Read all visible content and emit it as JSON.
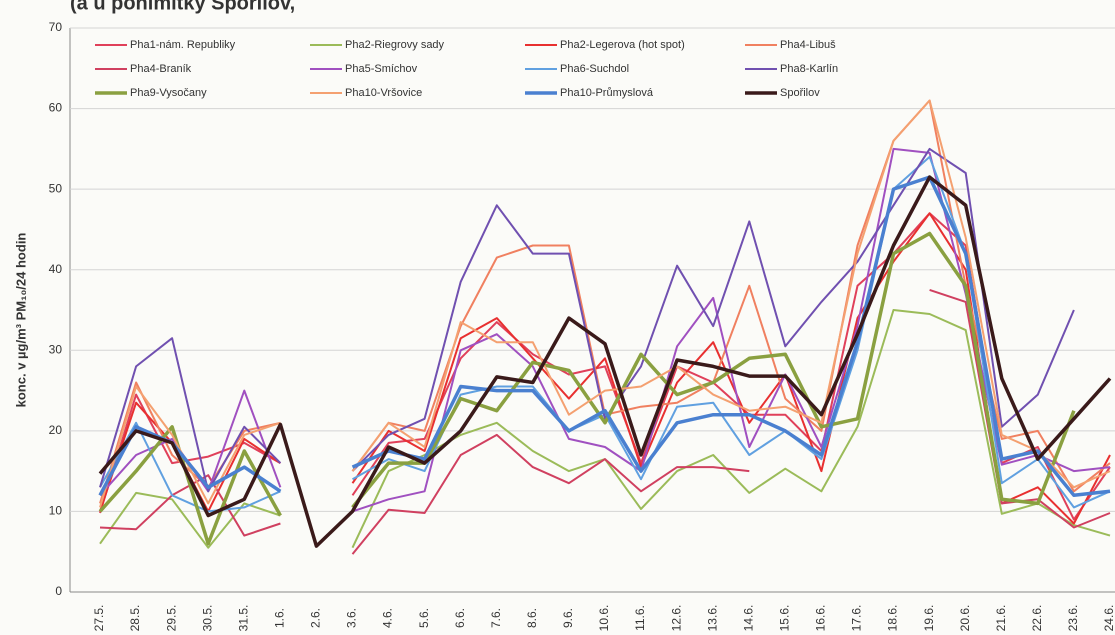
{
  "chart_data": {
    "type": "line",
    "title": "(a u pohlmitky Spořilov,",
    "y_label": "konc. v µg/m³ PM₁₀/24 hodin",
    "categories": [
      "27.5.",
      "28.5.",
      "29.5.",
      "30.5.",
      "31.5.",
      "1.6.",
      "2.6.",
      "3.6.",
      "4.6.",
      "5.6.",
      "6.6.",
      "7.6.",
      "8.6.",
      "9.6.",
      "10.6.",
      "11.6.",
      "12.6.",
      "13.6.",
      "14.6.",
      "15.6.",
      "16.6.",
      "17.6.",
      "18.6.",
      "19.6.",
      "20.6.",
      "21.6.",
      "22.6.",
      "23.6.",
      "24.6."
    ],
    "ylim": [
      0,
      70
    ],
    "yticks": [
      0,
      10,
      20,
      30,
      40,
      50,
      60,
      70
    ],
    "grid": true,
    "series": [
      {
        "name": "Pha1-nám. Republiky",
        "color": "#e0405a",
        "values": [
          9.8,
          24.5,
          16,
          16.8,
          18.5,
          16,
          null,
          12,
          18.5,
          19,
          29,
          33.5,
          29.5,
          27,
          28,
          16,
          28,
          26,
          22,
          22,
          17.5,
          38,
          42,
          47,
          43,
          16,
          18,
          9,
          15.5
        ]
      },
      {
        "name": "Pha2-Riegrovy sady",
        "color": "#9bbb59",
        "values": [
          6,
          12.3,
          11.5,
          5.5,
          11,
          9.5,
          null,
          5.5,
          15,
          17,
          19.5,
          21,
          17.5,
          15,
          16.5,
          10.3,
          15,
          17,
          12.3,
          15.3,
          12.5,
          20.5,
          35,
          34.5,
          32.5,
          9.7,
          11,
          8.3,
          7
        ]
      },
      {
        "name": "Pha2-Legerova (hot spot)",
        "color": "#e83030",
        "values": [
          10,
          23.5,
          18.5,
          10,
          19,
          16,
          null,
          13.5,
          20,
          17.5,
          31.5,
          34,
          29,
          24,
          29,
          15.5,
          26,
          31,
          21,
          27,
          15,
          34,
          41,
          47,
          40,
          11,
          13,
          8.5,
          17
        ]
      },
      {
        "name": "Pha4-Libuš",
        "color": "#f08060",
        "values": [
          11,
          26,
          17,
          13,
          20,
          21,
          null,
          15,
          21,
          20,
          33,
          41.5,
          43,
          43,
          22,
          23,
          23.5,
          26,
          38,
          24,
          20,
          43,
          56,
          61,
          38,
          19,
          20,
          12.5,
          16
        ]
      },
      {
        "name": "Pha4-Braník",
        "color": "#d04060",
        "values": [
          8,
          7.8,
          12,
          14.5,
          7,
          8.5,
          null,
          4.7,
          10.2,
          9.8,
          17,
          19.5,
          15.5,
          13.5,
          16.5,
          12.5,
          15.5,
          15.5,
          15,
          null,
          null,
          null,
          null,
          37.5,
          36,
          11,
          11.5,
          8,
          9.8
        ]
      },
      {
        "name": "Pha5-Smíchov",
        "color": "#a050c0",
        "values": [
          12,
          17,
          19,
          12.5,
          25,
          13,
          null,
          10,
          11.5,
          12.5,
          30,
          32,
          28,
          19,
          18,
          15,
          30.5,
          36.5,
          18,
          27,
          18,
          33,
          55,
          54.5,
          37,
          15.8,
          17,
          15,
          15.5
        ]
      },
      {
        "name": "Pha6-Suchdol",
        "color": "#60a0e0",
        "values": [
          13,
          21,
          12,
          10,
          10.5,
          12.5,
          null,
          14,
          16.5,
          15,
          24.5,
          25.5,
          25.5,
          20,
          22,
          14,
          23,
          23.5,
          17,
          20,
          16.5,
          30,
          50,
          54,
          42,
          13.5,
          16.5,
          10.5,
          12.5
        ]
      },
      {
        "name": "Pha8-Karlín",
        "color": "#7050b0",
        "values": [
          13,
          28,
          31.5,
          12.5,
          20.5,
          16,
          null,
          15,
          19.5,
          21.5,
          38.5,
          48,
          42,
          42,
          21.5,
          28,
          40.5,
          33,
          46,
          30.5,
          36,
          41,
          48,
          55,
          52,
          20.5,
          24.5,
          35,
          null
        ]
      },
      {
        "name": "Pha9-Vysočany",
        "color": "#8aa040",
        "width": 3.5,
        "values": [
          10,
          15,
          20.5,
          6,
          17.5,
          9.5,
          null,
          10.5,
          16,
          16,
          24,
          22.5,
          28.5,
          27.5,
          21,
          29.5,
          24.5,
          26,
          29,
          29.5,
          20.5,
          21.5,
          42,
          44.5,
          38,
          11.5,
          11,
          22.5,
          null
        ]
      },
      {
        "name": "Pha10-Vršovice",
        "color": "#f4a070",
        "values": [
          10.5,
          25.5,
          19.5,
          11,
          19.5,
          21,
          null,
          15,
          21,
          18,
          33.5,
          31,
          31,
          22,
          25,
          25.5,
          28,
          24.5,
          22.5,
          23,
          21,
          42,
          56,
          61,
          44,
          19.5,
          17.5,
          13,
          15
        ]
      },
      {
        "name": "Pha10-Průmyslová",
        "color": "#4a80d0",
        "width": 3.5,
        "values": [
          12,
          20.5,
          18.5,
          13,
          15.5,
          12.5,
          null,
          15.5,
          17.5,
          16.5,
          25.5,
          25,
          25,
          20,
          22.5,
          15,
          21,
          22,
          22,
          20,
          17,
          31,
          50,
          51.5,
          42,
          16.5,
          17.5,
          12,
          12.5
        ]
      },
      {
        "name": "Spořilov",
        "color": "#3a1a1a",
        "width": 3.5,
        "values": [
          14.7,
          20,
          18.5,
          9.5,
          11.5,
          20.8,
          5.7,
          10,
          18,
          16,
          20,
          26.7,
          26,
          34,
          30.8,
          17,
          28.8,
          28,
          26.8,
          26.8,
          22,
          32,
          43,
          51.5,
          48,
          26.5,
          16.5,
          21.5,
          26.5
        ]
      }
    ]
  }
}
